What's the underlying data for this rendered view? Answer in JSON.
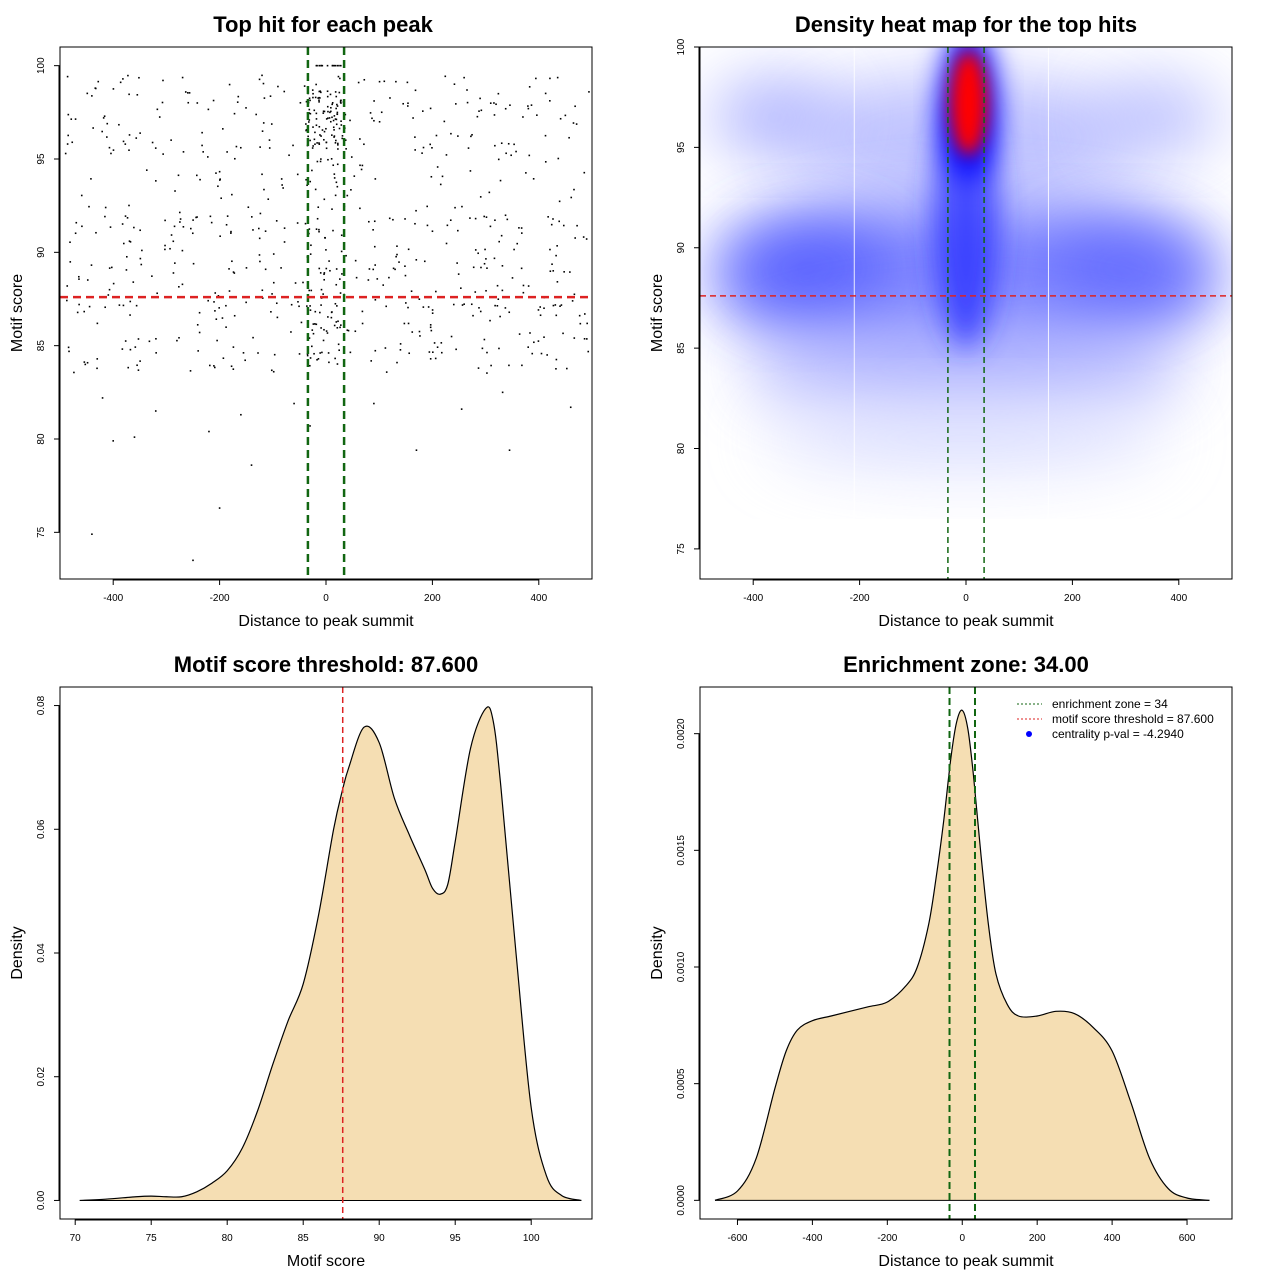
{
  "chart_data": [
    {
      "type": "scatter",
      "title": "Top hit for each peak",
      "xlabel": "Distance to peak summit",
      "ylabel": "Motif score",
      "xlim": [
        -500,
        500
      ],
      "ylim": [
        72.5,
        101
      ],
      "xticks": [
        -400,
        -200,
        0,
        200,
        400
      ],
      "yticks": [
        75,
        80,
        85,
        90,
        95,
        100
      ],
      "hlines": [
        {
          "y": 87.6,
          "color": "#dd2222",
          "style": "dashed"
        }
      ],
      "vlines": [
        {
          "x": -34,
          "color": "#116611",
          "style": "dashed"
        },
        {
          "x": 34,
          "color": "#116611",
          "style": "dashed"
        }
      ],
      "point_color": "#000000",
      "points_note_sample": [
        [
          -440,
          74.9
        ],
        [
          -250,
          73.5
        ],
        [
          -200,
          76.3
        ],
        [
          -140,
          78.6
        ],
        [
          170,
          79.4
        ],
        [
          345,
          79.4
        ],
        [
          -400,
          79.9
        ],
        [
          -360,
          80.1
        ],
        [
          -220,
          80.4
        ],
        [
          -420,
          82.2
        ],
        [
          -160,
          81.3
        ],
        [
          -320,
          81.5
        ],
        [
          -60,
          81.9
        ],
        [
          -30,
          80.7
        ],
        [
          255,
          81.6
        ],
        [
          332,
          82.5
        ],
        [
          460,
          81.7
        ],
        [
          90,
          81.9
        ]
      ]
    },
    {
      "type": "heatmap",
      "title": "Density heat map for the top hits",
      "xlabel": "Distance to peak summit",
      "ylabel": "Motif score",
      "xlim": [
        -500,
        500
      ],
      "ylim": [
        73.5,
        100
      ],
      "xticks": [
        -400,
        -200,
        0,
        200,
        400
      ],
      "yticks": [
        75,
        80,
        85,
        90,
        95,
        100
      ],
      "hlines": [
        {
          "y": 87.6,
          "color": "#dd2222",
          "style": "dashed"
        }
      ],
      "vlines": [
        {
          "x": -34,
          "color": "#116611",
          "style": "dashed"
        },
        {
          "x": 34,
          "color": "#116611",
          "style": "dashed"
        }
      ],
      "colors": [
        "#ffffff",
        "#0000ff",
        "#ff0000"
      ],
      "density_peaks": [
        {
          "x": 5,
          "y": 97.2,
          "level": "high"
        },
        {
          "x": 0,
          "y": 88.5,
          "level": "medium"
        },
        {
          "x": -300,
          "y": 89.0,
          "level": "medium"
        },
        {
          "x": 300,
          "y": 89.0,
          "level": "medium"
        },
        {
          "x": -350,
          "y": 96.5,
          "level": "low"
        },
        {
          "x": 350,
          "y": 96.5,
          "level": "low"
        }
      ]
    },
    {
      "type": "area",
      "title": "Motif score threshold: 87.600",
      "xlabel": "Motif score",
      "ylabel": "Density",
      "xlim": [
        69,
        104
      ],
      "ylim": [
        -0.003,
        0.083
      ],
      "xticks": [
        70,
        75,
        80,
        85,
        90,
        95,
        100
      ],
      "yticks": [
        0.0,
        0.02,
        0.04,
        0.06,
        0.08
      ],
      "ytick_labels": [
        "0.00",
        "0.02",
        "0.04",
        "0.06",
        "0.08"
      ],
      "fill_color": "#f5deb3",
      "vlines": [
        {
          "x": 87.6,
          "color": "#dd2222",
          "style": "dashed"
        }
      ],
      "x": [
        70.3,
        72,
        74,
        75,
        76,
        77,
        78,
        79,
        80,
        81,
        82,
        83,
        84,
        85,
        86,
        87,
        87.6,
        88,
        89,
        90,
        91,
        92,
        93,
        93.5,
        94,
        94.5,
        95,
        96,
        97,
        97.5,
        98,
        99,
        100,
        101,
        102,
        103.3
      ],
      "y": [
        0.0,
        0.0002,
        0.0006,
        0.0007,
        0.0006,
        0.0006,
        0.0014,
        0.0028,
        0.0048,
        0.0085,
        0.0145,
        0.022,
        0.029,
        0.035,
        0.046,
        0.06,
        0.0665,
        0.07,
        0.0765,
        0.074,
        0.065,
        0.059,
        0.0535,
        0.0505,
        0.0495,
        0.051,
        0.058,
        0.073,
        0.0795,
        0.0775,
        0.067,
        0.04,
        0.015,
        0.004,
        0.0008,
        0.0
      ]
    },
    {
      "type": "area",
      "title": "Enrichment zone: 34.00",
      "xlabel": "Distance to peak summit",
      "ylabel": "Density",
      "xlim": [
        -700,
        720
      ],
      "ylim": [
        -8e-05,
        0.0022
      ],
      "xticks": [
        -600,
        -400,
        -200,
        0,
        200,
        400,
        600
      ],
      "yticks": [
        0.0,
        0.0005,
        0.001,
        0.0015,
        0.002
      ],
      "ytick_labels": [
        "0.0000",
        "0.0005",
        "0.0010",
        "0.0015",
        "0.0020"
      ],
      "fill_color": "#f5deb3",
      "vlines": [
        {
          "x": -34,
          "color": "#116611",
          "style": "dashed"
        },
        {
          "x": 34,
          "color": "#116611",
          "style": "dashed"
        }
      ],
      "x": [
        -660,
        -600,
        -550,
        -500,
        -470,
        -440,
        -400,
        -350,
        -300,
        -250,
        -200,
        -150,
        -120,
        -90,
        -70,
        -50,
        -30,
        -15,
        0,
        15,
        30,
        50,
        70,
        90,
        120,
        150,
        200,
        250,
        300,
        350,
        400,
        450,
        500,
        550,
        600,
        660
      ],
      "y": [
        0.0,
        4e-05,
        0.00018,
        0.00048,
        0.00064,
        0.00073,
        0.00077,
        0.00079,
        0.00081,
        0.00083,
        0.00085,
        0.00092,
        0.001,
        0.00118,
        0.00138,
        0.00162,
        0.0019,
        0.00205,
        0.0021,
        0.00202,
        0.00182,
        0.00148,
        0.00118,
        0.00097,
        0.00084,
        0.00079,
        0.00079,
        0.00081,
        0.0008,
        0.00074,
        0.00064,
        0.00042,
        0.00018,
        5e-05,
        1e-05,
        0.0
      ],
      "legend": {
        "position": "top-right",
        "entries": [
          {
            "label": "enrichment zone = 34",
            "color": "#116611",
            "symbol": "dotted-line"
          },
          {
            "label": "motif score threshold = 87.600",
            "color": "#dd2222",
            "symbol": "dotted-line"
          },
          {
            "label": "centrality p-val = -4.2940",
            "color": "#0000ff",
            "symbol": "dot"
          }
        ]
      }
    }
  ]
}
